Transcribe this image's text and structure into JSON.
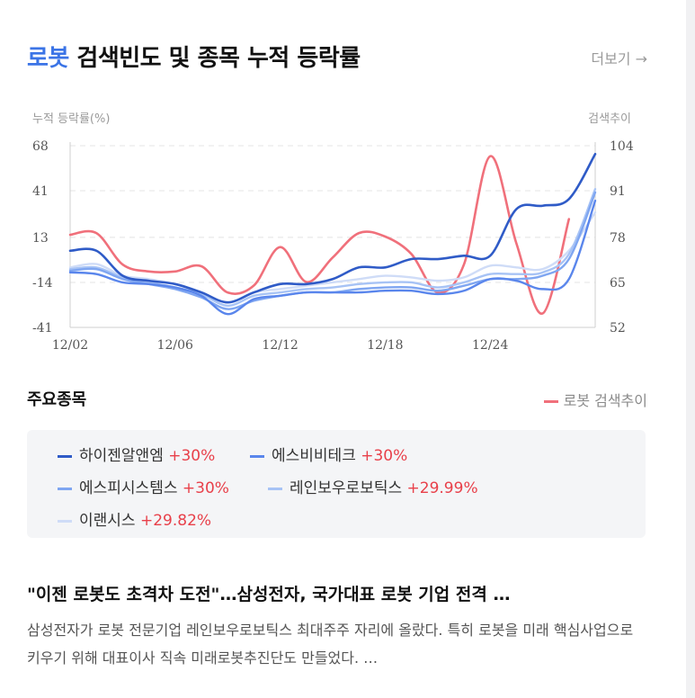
{
  "header": {
    "keyword": "로봇",
    "title_rest": "검색빈도 및 종목 누적 등락률",
    "more_label": "더보기 →"
  },
  "chart_data": {
    "type": "line",
    "left_axis_label": "누적 등락률(%)",
    "right_axis_label": "검색추이",
    "left_ticks": [
      68,
      41,
      13,
      -14,
      -41
    ],
    "right_ticks": [
      104,
      91,
      78,
      65,
      52
    ],
    "ylim_left": [
      -41,
      68
    ],
    "ylim_right": [
      52,
      104
    ],
    "x_ticks": [
      "12/02",
      "12/06",
      "12/12",
      "12/18",
      "12/24"
    ],
    "x_tick_index": [
      0,
      4,
      8,
      12,
      16
    ],
    "n_points": 21,
    "grid": "dashed horizontal",
    "series": [
      {
        "name": "로봇 검색추이",
        "axis": "right",
        "color": "#f0707b",
        "width": 2.6,
        "values": [
          78.5,
          79,
          70,
          68,
          68,
          69.5,
          62,
          64,
          75,
          65,
          72,
          79,
          78,
          73,
          62,
          70,
          101,
          76,
          56,
          83,
          null
        ]
      },
      {
        "name": "하이젠알앤엠",
        "axis": "left",
        "color": "#2f5bc7",
        "width": 2.6,
        "values": [
          5,
          5,
          -10,
          -13,
          -15,
          -20,
          -26,
          -20,
          -15,
          -15,
          -12,
          -5,
          -5,
          0,
          0,
          2,
          2,
          30,
          32,
          36,
          63
        ]
      },
      {
        "name": "에스비비테크",
        "axis": "left",
        "color": "#5a86ec",
        "width": 2.4,
        "values": [
          -8,
          -9,
          -14,
          -15,
          -17,
          -22,
          -33,
          -24,
          -22,
          -20,
          -20,
          -20,
          -19,
          -19,
          -21,
          -19,
          -12,
          -13,
          -18,
          -12,
          35
        ]
      },
      {
        "name": "에스피시스템스",
        "axis": "left",
        "color": "#7fa6f1",
        "width": 2.4,
        "values": [
          -7,
          -6,
          -12,
          -15,
          -18,
          -23,
          -30,
          -25,
          -22,
          -20,
          -20,
          -18,
          -17,
          -17,
          -19,
          -16,
          -12,
          -12,
          -10,
          0,
          40
        ]
      },
      {
        "name": "레인보우로보틱스",
        "axis": "left",
        "color": "#a7c3f5",
        "width": 2.4,
        "values": [
          -6,
          -5,
          -11,
          -14,
          -17,
          -21,
          -28,
          -22,
          -20,
          -18,
          -17,
          -15,
          -14,
          -14,
          -17,
          -14,
          -9,
          -9,
          -8,
          3,
          42
        ]
      },
      {
        "name": "이랜시스",
        "axis": "left",
        "color": "#cfdcf7",
        "width": 2.4,
        "values": [
          -5,
          -3,
          -10,
          -12,
          -15,
          -20,
          -26,
          -20,
          -18,
          -16,
          -14,
          -12,
          -10,
          -11,
          -13,
          -11,
          -4,
          -5,
          -6,
          5,
          28
        ]
      }
    ]
  },
  "stocks_section": {
    "title": "주요종목",
    "legend_keyword": "로봇 검색추이",
    "items": [
      {
        "name": "하이젠알앤엠",
        "change": "+30%",
        "color": "#2f5bc7"
      },
      {
        "name": "에스비비테크",
        "change": "+30%",
        "color": "#5a86ec"
      },
      {
        "name": "에스피시스템스",
        "change": "+30%",
        "color": "#7fa6f1"
      },
      {
        "name": "레인보우로보틱스",
        "change": "+29.99%",
        "color": "#a7c3f5"
      },
      {
        "name": "이랜시스",
        "change": "+29.82%",
        "color": "#cfdcf7"
      }
    ]
  },
  "news": {
    "title": "\"이젠 로봇도 초격차 도전\"…삼성전자, 국가대표 로봇 기업 전격 …",
    "body": "삼성전자가 로봇 전문기업 레인보우로보틱스 최대주주 자리에 올랐다. 특히 로봇을 미래 핵심사업으로 키우기 위해 대표이사 직속 미래로봇추진단도 만들었다. …"
  }
}
